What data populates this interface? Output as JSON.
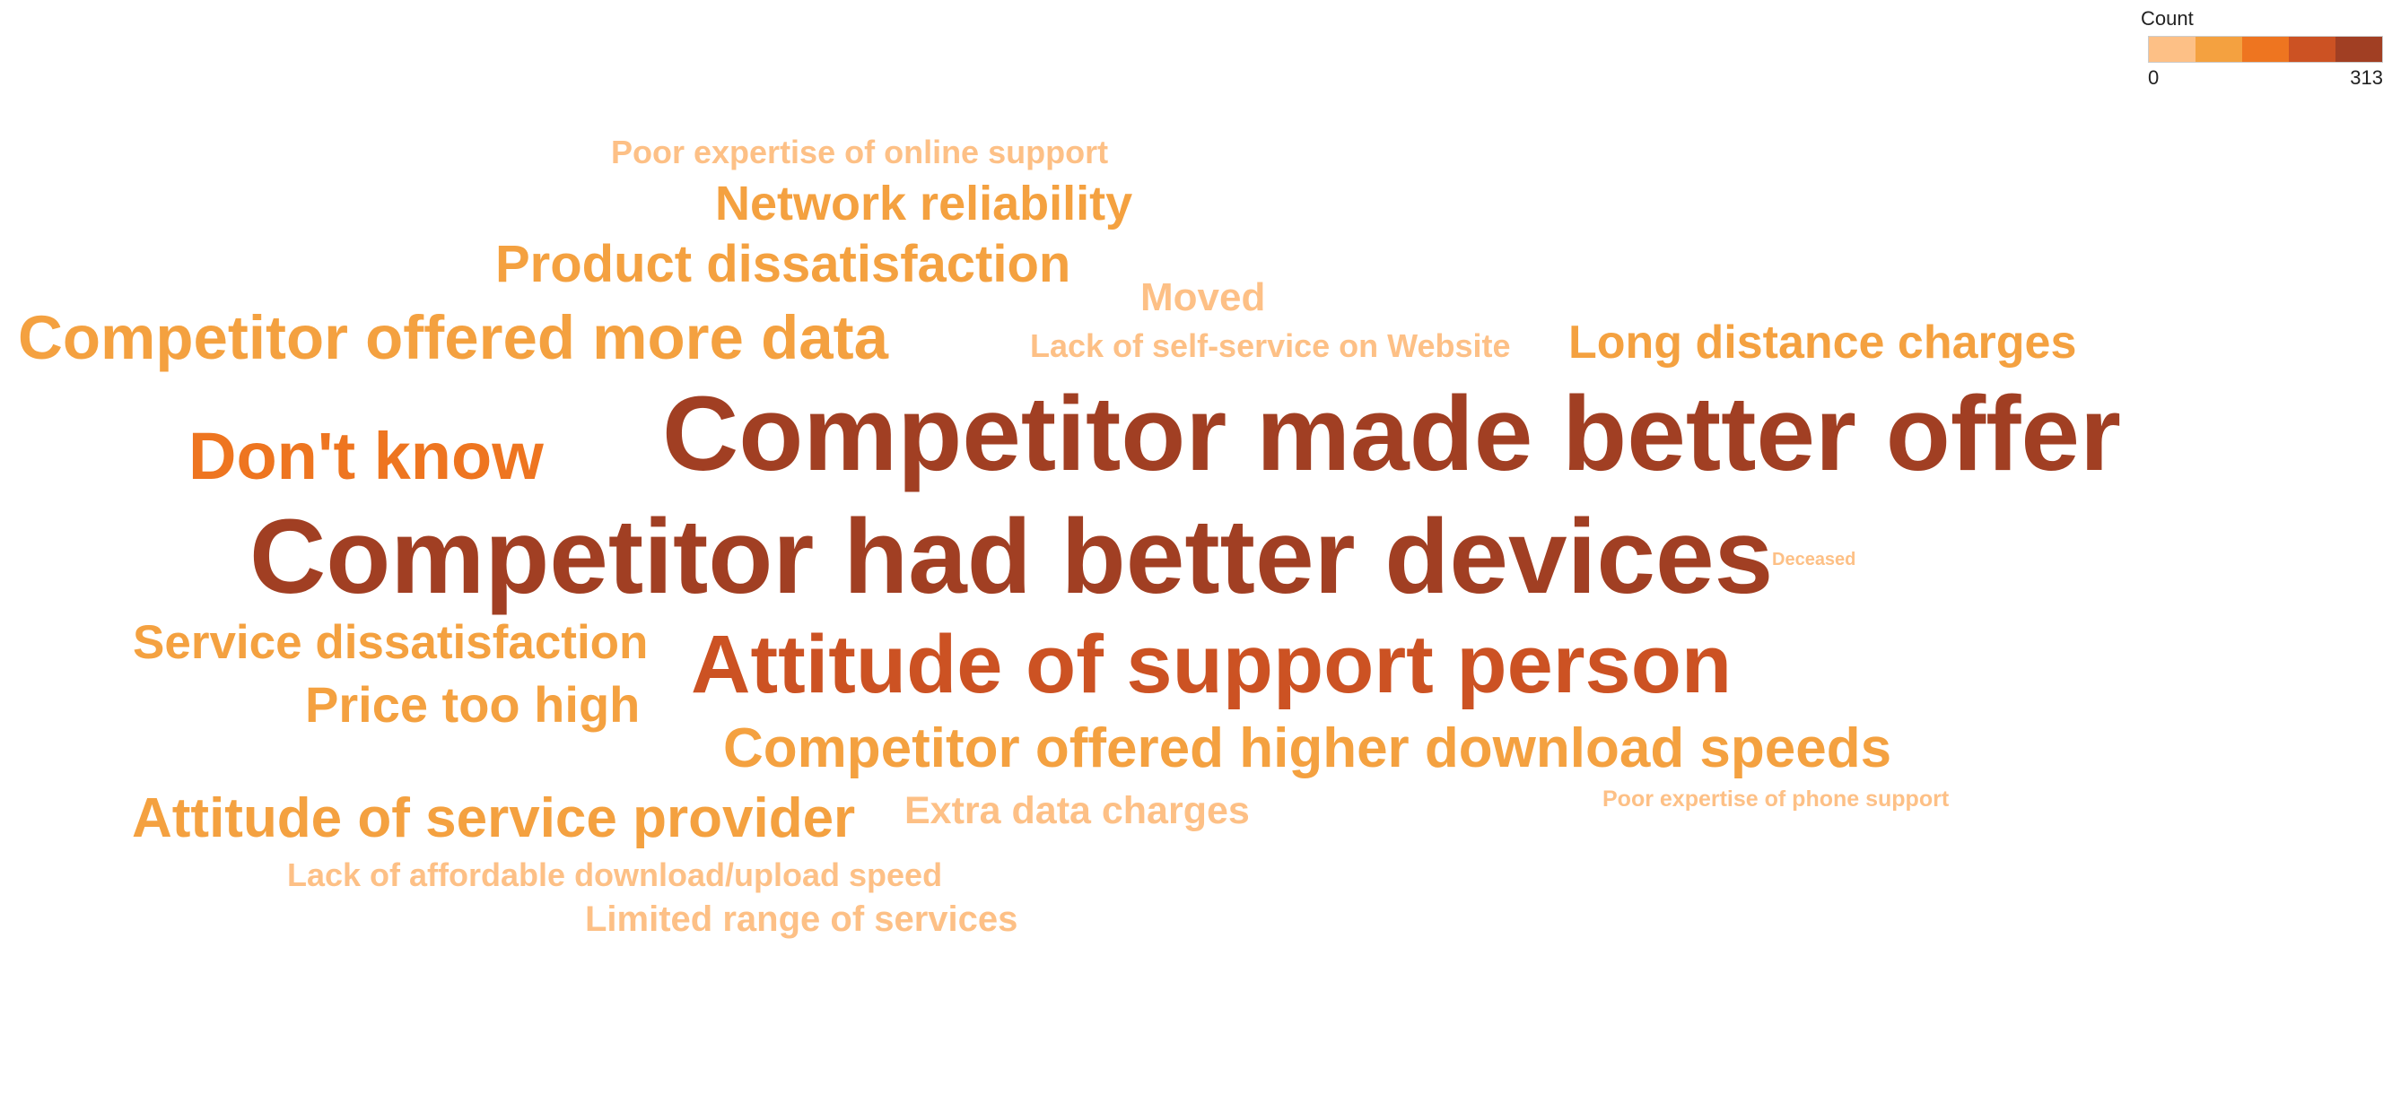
{
  "chart_data": {
    "type": "wordcloud",
    "legend": {
      "title": "Count",
      "min_label": "0",
      "max_label": "313",
      "min": 0,
      "max": 313,
      "placement": "top-right",
      "colors": [
        "#fdc086",
        "#f4a140",
        "#ee7520",
        "#cc5223",
        "#a13f23"
      ]
    },
    "words": [
      {
        "text": "Competitor made better offer",
        "count": 313,
        "color": "#a13f23"
      },
      {
        "text": "Competitor had better devices",
        "count": 313,
        "color": "#a13f23"
      },
      {
        "text": "Attitude of support person",
        "count": 220,
        "color": "#cc5223"
      },
      {
        "text": "Don't know",
        "count": 130,
        "color": "#ee7520"
      },
      {
        "text": "Competitor offered higher download speeds",
        "count": 100,
        "color": "#f4a140"
      },
      {
        "text": "Competitor offered more data",
        "count": 115,
        "color": "#f4a140"
      },
      {
        "text": "Attitude of service provider",
        "count": 95,
        "color": "#f4a140"
      },
      {
        "text": "Product dissatisfaction",
        "count": 80,
        "color": "#f4a140"
      },
      {
        "text": "Price too high",
        "count": 75,
        "color": "#f4a140"
      },
      {
        "text": "Service dissatisfaction",
        "count": 70,
        "color": "#f4a140"
      },
      {
        "text": "Network reliability",
        "count": 70,
        "color": "#f4a140"
      },
      {
        "text": "Long distance charges",
        "count": 60,
        "color": "#f4a140"
      },
      {
        "text": "Moved",
        "count": 45,
        "color": "#fdc086"
      },
      {
        "text": "Extra data charges",
        "count": 40,
        "color": "#fdc086"
      },
      {
        "text": "Limited range of services",
        "count": 40,
        "color": "#fdc086"
      },
      {
        "text": "Lack of affordable download/upload speed",
        "count": 35,
        "color": "#fdc086"
      },
      {
        "text": "Lack of self-service on Website",
        "count": 35,
        "color": "#fdc086"
      },
      {
        "text": "Poor expertise of online support",
        "count": 33,
        "color": "#fdc086"
      },
      {
        "text": "Poor expertise of phone support",
        "count": 20,
        "color": "#fdc086"
      },
      {
        "text": "Deceased",
        "count": 6,
        "color": "#fdc086"
      }
    ]
  }
}
